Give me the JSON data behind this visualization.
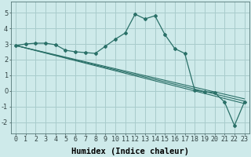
{
  "title": "",
  "xlabel": "Humidex (Indice chaleur)",
  "ylabel": "",
  "bg_color": "#ceeaea",
  "grid_color": "#a8cccc",
  "line_color": "#2a7068",
  "xlim": [
    -0.5,
    23.5
  ],
  "ylim": [
    -2.7,
    5.7
  ],
  "xticks": [
    0,
    1,
    2,
    3,
    4,
    5,
    6,
    7,
    8,
    9,
    10,
    11,
    12,
    13,
    14,
    15,
    16,
    17,
    18,
    19,
    20,
    21,
    22,
    23
  ],
  "yticks": [
    -2,
    -1,
    0,
    1,
    2,
    3,
    4,
    5
  ],
  "line1_x": [
    0,
    1,
    2,
    3,
    4,
    5,
    6,
    7,
    8,
    9,
    10,
    11,
    12,
    13,
    14,
    15,
    16,
    17,
    18,
    19,
    20,
    21,
    22,
    23
  ],
  "line1_y": [
    2.9,
    3.0,
    3.05,
    3.05,
    2.95,
    2.6,
    2.5,
    2.45,
    2.4,
    2.85,
    3.3,
    3.7,
    4.9,
    4.6,
    4.8,
    3.6,
    2.7,
    2.4,
    0.05,
    -0.05,
    -0.1,
    -0.7,
    -2.2,
    -0.7
  ],
  "line2_x": [
    0,
    23
  ],
  "line2_y": [
    2.9,
    -0.8
  ],
  "line3_x": [
    0,
    23
  ],
  "line3_y": [
    2.9,
    -0.65
  ],
  "line4_x": [
    0,
    23
  ],
  "line4_y": [
    2.9,
    -0.5
  ],
  "fontsize_label": 7,
  "fontsize_tick": 6,
  "fontsize_xlabel": 7.5
}
